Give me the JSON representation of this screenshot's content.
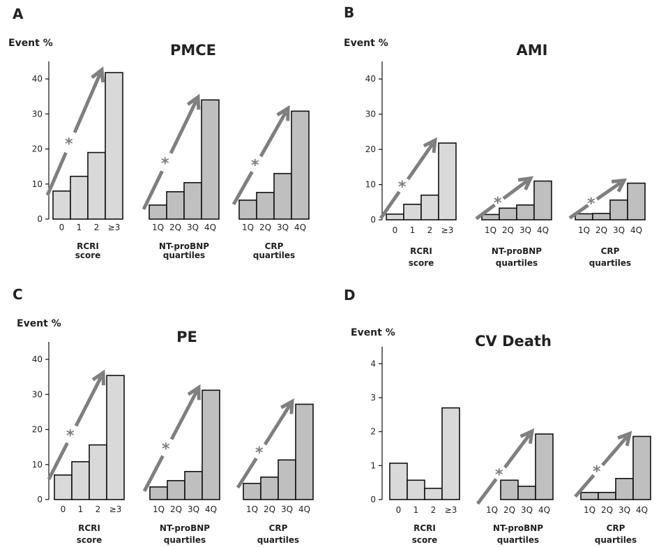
{
  "chart_data": [
    {
      "panel": "A",
      "type": "bar",
      "title": "PMCE",
      "ylabel": "Event %",
      "ylim": [
        0,
        45
      ],
      "yticks": [
        0,
        10,
        20,
        30,
        40
      ],
      "groups": [
        {
          "name_lines": [
            "RCRI",
            "score"
          ],
          "categories": [
            "0",
            "1",
            "2",
            "≥3"
          ],
          "values": [
            8,
            12.2,
            19,
            41.8
          ],
          "color": "#d9d9d9",
          "arrow_star": true
        },
        {
          "name_lines": [
            "NT-proBNP",
            "quartiles"
          ],
          "categories": [
            "1Q",
            "2Q",
            "3Q",
            "4Q"
          ],
          "values": [
            4,
            7.8,
            10.4,
            34
          ],
          "color": "#bfbfbf",
          "arrow_star": true
        },
        {
          "name_lines": [
            "CRP",
            "quartiles"
          ],
          "categories": [
            "1Q",
            "2Q",
            "3Q",
            "4Q"
          ],
          "values": [
            5.4,
            7.6,
            13,
            30.8
          ],
          "color": "#bfbfbf",
          "arrow_star": true
        }
      ]
    },
    {
      "panel": "B",
      "type": "bar",
      "title": "AMI",
      "ylabel": "Event %",
      "ylim": [
        0,
        45
      ],
      "yticks": [
        0,
        10,
        20,
        30,
        40
      ],
      "groups": [
        {
          "name_lines": [
            "RCRI",
            "score"
          ],
          "categories": [
            "0",
            "1",
            "2",
            "≥3"
          ],
          "values": [
            1.6,
            4.4,
            7,
            21.8
          ],
          "color": "#d9d9d9",
          "arrow_star": true
        },
        {
          "name_lines": [
            "NT-proBNP",
            "quartiles"
          ],
          "categories": [
            "1Q",
            "2Q",
            "3Q",
            "4Q"
          ],
          "values": [
            1.5,
            3.3,
            4.2,
            11
          ],
          "color": "#bfbfbf",
          "arrow_star": true
        },
        {
          "name_lines": [
            "CRP",
            "quartiles"
          ],
          "categories": [
            "1Q",
            "2Q",
            "3Q",
            "4Q"
          ],
          "values": [
            1.7,
            1.8,
            5.6,
            10.4
          ],
          "color": "#bfbfbf",
          "arrow_star": true
        }
      ]
    },
    {
      "panel": "C",
      "type": "bar",
      "title": "PE",
      "ylabel": "Event %",
      "ylim": [
        0,
        45
      ],
      "yticks": [
        0,
        10,
        20,
        30,
        40
      ],
      "groups": [
        {
          "name_lines": [
            "RCRI",
            "score"
          ],
          "categories": [
            "0",
            "1",
            "2",
            "≥3"
          ],
          "values": [
            7,
            10.8,
            15.6,
            35.4
          ],
          "color": "#d9d9d9",
          "arrow_star": true
        },
        {
          "name_lines": [
            "NT-proBNP",
            "quartiles"
          ],
          "categories": [
            "1Q",
            "2Q",
            "3Q",
            "4Q"
          ],
          "values": [
            3.6,
            5.4,
            8,
            31.2
          ],
          "color": "#bfbfbf",
          "arrow_star": true
        },
        {
          "name_lines": [
            "CRP",
            "quartiles"
          ],
          "categories": [
            "1Q",
            "2Q",
            "3Q",
            "4Q"
          ],
          "values": [
            4.6,
            6.4,
            11.3,
            27.2
          ],
          "color": "#bfbfbf",
          "arrow_star": true
        }
      ]
    },
    {
      "panel": "D",
      "type": "bar",
      "title": "CV Death",
      "ylabel": "Event %",
      "ylim": [
        0,
        4.5
      ],
      "yticks": [
        0,
        1,
        2,
        3,
        4
      ],
      "groups": [
        {
          "name_lines": [
            "RCRI",
            "score"
          ],
          "categories": [
            "0",
            "1",
            "2",
            "≥3"
          ],
          "values": [
            1.07,
            0.57,
            0.33,
            2.7
          ],
          "color": "#d9d9d9",
          "arrow_star": false
        },
        {
          "name_lines": [
            "NT-proBNP",
            "quartiles"
          ],
          "categories": [
            "1Q",
            "2Q",
            "3Q",
            "4Q"
          ],
          "values": [
            0,
            0.57,
            0.39,
            1.93
          ],
          "color": "#bfbfbf",
          "arrow_star": true
        },
        {
          "name_lines": [
            "CRP",
            "quartiles"
          ],
          "categories": [
            "1Q",
            "2Q",
            "3Q",
            "4Q"
          ],
          "values": [
            0.21,
            0.21,
            0.62,
            1.86
          ],
          "color": "#bfbfbf",
          "arrow_star": true
        }
      ]
    }
  ]
}
